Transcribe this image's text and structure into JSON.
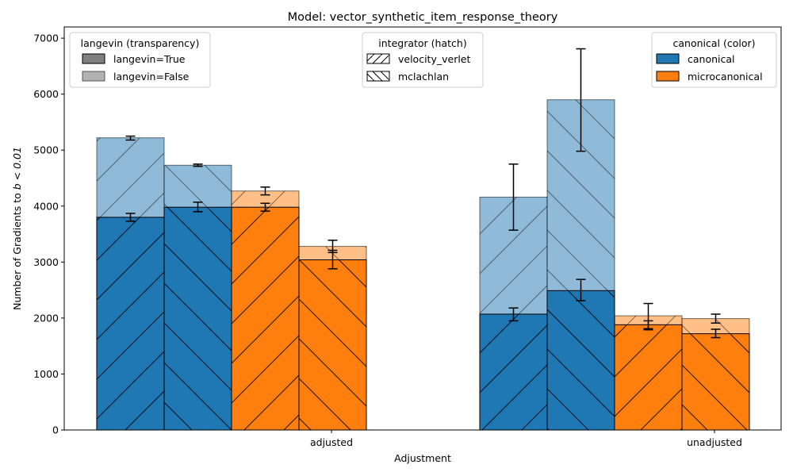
{
  "colors": {
    "canonical": "#1f77b4",
    "microcanonical": "#ff7f0e",
    "langevin_true_swatch": "#808080",
    "langevin_false_swatch": "#b3b3b3"
  },
  "chart_data": {
    "type": "bar",
    "title": "Model: vector_synthetic_item_response_theory",
    "xlabel": "Adjustment",
    "ylabel_prefix": "Number of Gradients to ",
    "ylabel_math": "b < 0.01",
    "ylim": [
      0,
      7200
    ],
    "yticks": [
      0,
      1000,
      2000,
      3000,
      4000,
      5000,
      6000,
      7000
    ],
    "ytick_labels": [
      "0",
      "1000",
      "2000",
      "3000",
      "4000",
      "5000",
      "6000",
      "7000"
    ],
    "categories": [
      "adjusted",
      "unadjusted"
    ],
    "grid": false,
    "bar_order": [
      "canonical / velocity_verlet",
      "canonical / mclachlan",
      "microcanonical / velocity_verlet",
      "microcanonical / mclachlan"
    ],
    "series": [
      {
        "canonical": "canonical",
        "integrator": "velocity_verlet",
        "langevin": "False",
        "values": [
          5220,
          4160
        ],
        "err_low": [
          5180,
          3570
        ],
        "err_high": [
          5250,
          4750
        ]
      },
      {
        "canonical": "canonical",
        "integrator": "velocity_verlet",
        "langevin": "True",
        "values": [
          3800,
          2070
        ],
        "err_low": [
          3730,
          1950
        ],
        "err_high": [
          3870,
          2180
        ]
      },
      {
        "canonical": "canonical",
        "integrator": "mclachlan",
        "langevin": "False",
        "values": [
          4730,
          5900
        ],
        "err_low": [
          4710,
          4980
        ],
        "err_high": [
          4750,
          6810
        ]
      },
      {
        "canonical": "canonical",
        "integrator": "mclachlan",
        "langevin": "True",
        "values": [
          3980,
          2490
        ],
        "err_low": [
          3900,
          2310
        ],
        "err_high": [
          4070,
          2690
        ]
      },
      {
        "canonical": "microcanonical",
        "integrator": "velocity_verlet",
        "langevin": "False",
        "values": [
          4270,
          2040
        ],
        "err_low": [
          4200,
          1790
        ],
        "err_high": [
          4340,
          2260
        ]
      },
      {
        "canonical": "microcanonical",
        "integrator": "velocity_verlet",
        "langevin": "True",
        "values": [
          3980,
          1880
        ],
        "err_low": [
          3910,
          1810
        ],
        "err_high": [
          4050,
          1950
        ]
      },
      {
        "canonical": "microcanonical",
        "integrator": "mclachlan",
        "langevin": "False",
        "values": [
          3280,
          1990
        ],
        "err_low": [
          3170,
          1910
        ],
        "err_high": [
          3390,
          2070
        ]
      },
      {
        "canonical": "microcanonical",
        "integrator": "mclachlan",
        "langevin": "True",
        "values": [
          3040,
          1720
        ],
        "err_low": [
          2880,
          1650
        ],
        "err_high": [
          3210,
          1800
        ]
      }
    ],
    "legends": {
      "langevin": {
        "title": "langevin (transparency)",
        "entries": [
          "langevin=True",
          "langevin=False"
        ]
      },
      "integrator": {
        "title": "integrator (hatch)",
        "entries": [
          "velocity_verlet",
          "mclachlan"
        ]
      },
      "canonical": {
        "title": "canonical (color)",
        "entries": [
          "canonical",
          "microcanonical"
        ]
      }
    }
  }
}
